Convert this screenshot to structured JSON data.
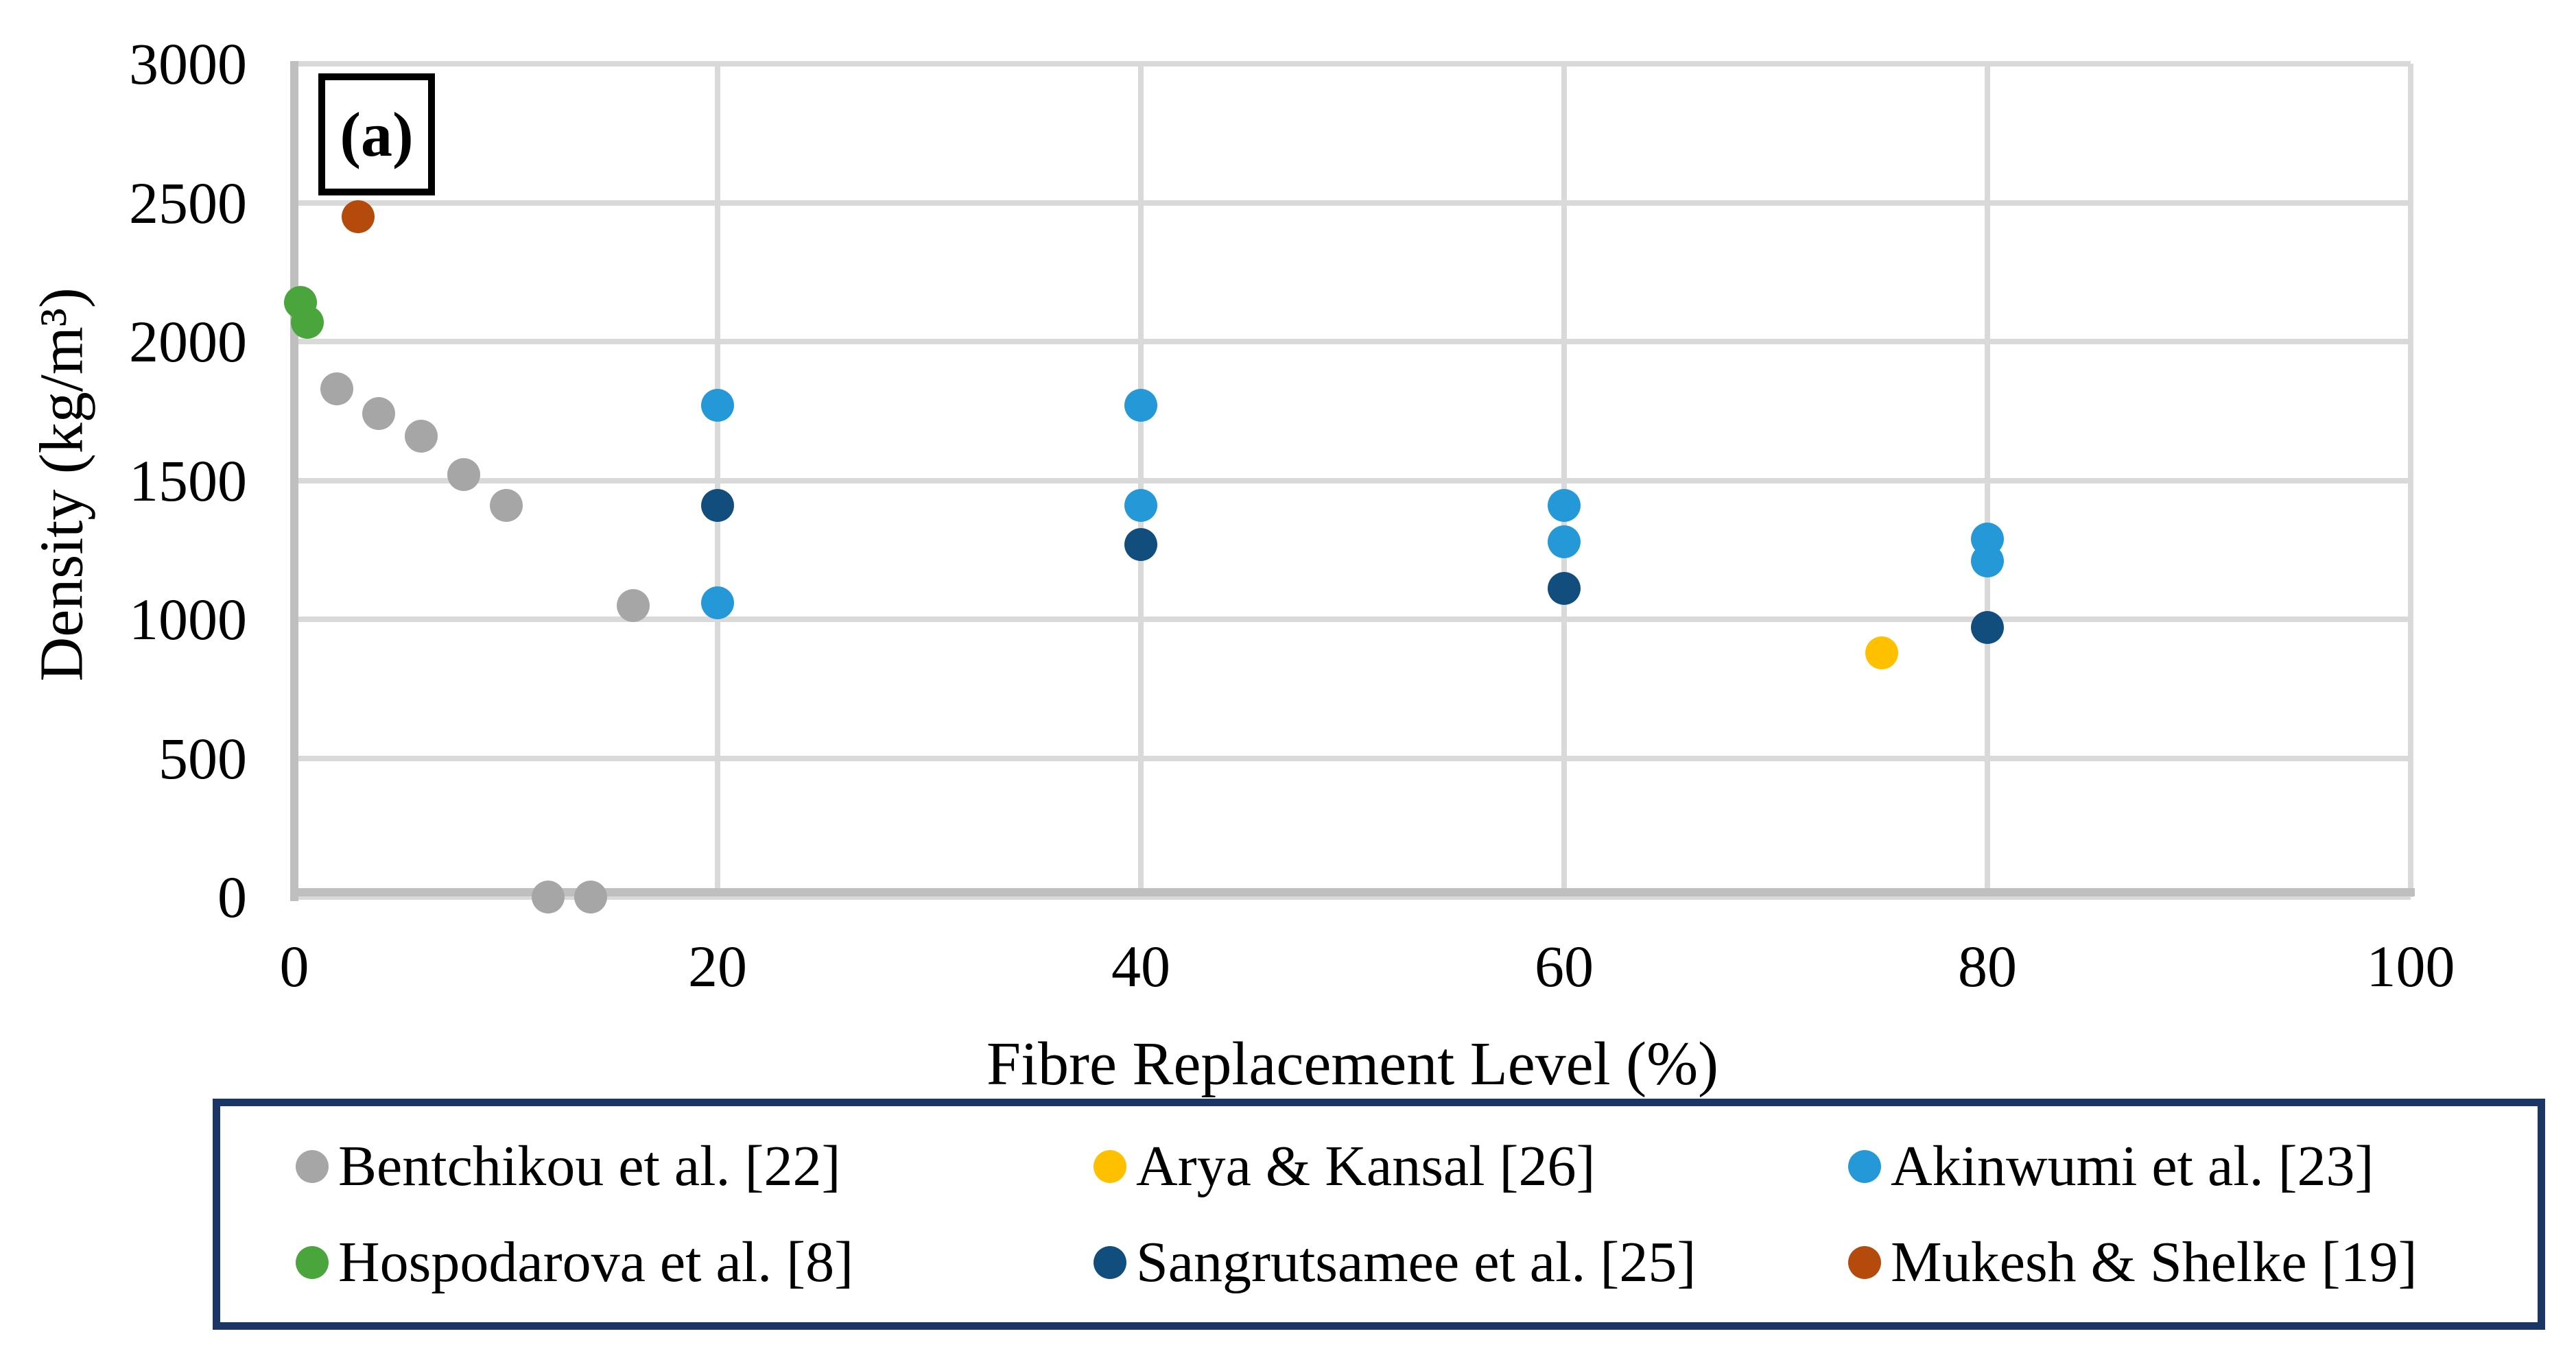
{
  "figure": {
    "panel_label": "(a)"
  },
  "chart_data": {
    "type": "scatter",
    "title": "",
    "xlabel": "Fibre Replacement Level (%)",
    "ylabel": "Density (kg/m³)",
    "xlim": [
      0,
      100
    ],
    "ylim": [
      0,
      3000
    ],
    "x_ticks": [
      0,
      20,
      40,
      60,
      80,
      100
    ],
    "y_ticks": [
      0,
      500,
      1000,
      1500,
      2000,
      2500,
      3000
    ],
    "grid": true,
    "gridline_color": "#D9D9D9",
    "axis_line_color": "#BFBFBF",
    "marker": "circle",
    "legend_position": "bottom",
    "legend_border_color": "#1B3665",
    "series": [
      {
        "name": "Bentchikou et al. [22]",
        "color": "#A6A6A6",
        "points": [
          [
            2,
            1830
          ],
          [
            4,
            1740
          ],
          [
            6,
            1660
          ],
          [
            8,
            1520
          ],
          [
            10,
            1410
          ],
          [
            12,
            0
          ],
          [
            14,
            0
          ],
          [
            16,
            1050
          ]
        ]
      },
      {
        "name": "Hospodarova et al. [8]",
        "color": "#4AA53C",
        "points": [
          [
            0.3,
            2140
          ],
          [
            0.6,
            2070
          ]
        ]
      },
      {
        "name": "Arya & Kansal [26]",
        "color": "#FFC000",
        "points": [
          [
            75,
            880
          ]
        ]
      },
      {
        "name": "Akinwumi et al. [23]",
        "color": "#2599D8",
        "points": [
          [
            20,
            1770
          ],
          [
            20,
            1060
          ],
          [
            40,
            1770
          ],
          [
            40,
            1410
          ],
          [
            60,
            1410
          ],
          [
            60,
            1280
          ],
          [
            80,
            1290
          ],
          [
            80,
            1210
          ]
        ]
      },
      {
        "name": "Sangrutsamee et al. [25]",
        "color": "#124E7D",
        "points": [
          [
            20,
            1410
          ],
          [
            40,
            1270
          ],
          [
            60,
            1110
          ],
          [
            80,
            970
          ]
        ]
      },
      {
        "name": "Mukesh & Shelke [19]",
        "color": "#B54A0D",
        "points": [
          [
            3,
            2450
          ]
        ]
      }
    ],
    "legend_order": [
      "Bentchikou et al. [22]",
      "Arya & Kansal [26]",
      "Akinwumi et al. [23]",
      "Hospodarova et al. [8]",
      "Sangrutsamee et al. [25]",
      "Mukesh & Shelke [19]"
    ]
  }
}
